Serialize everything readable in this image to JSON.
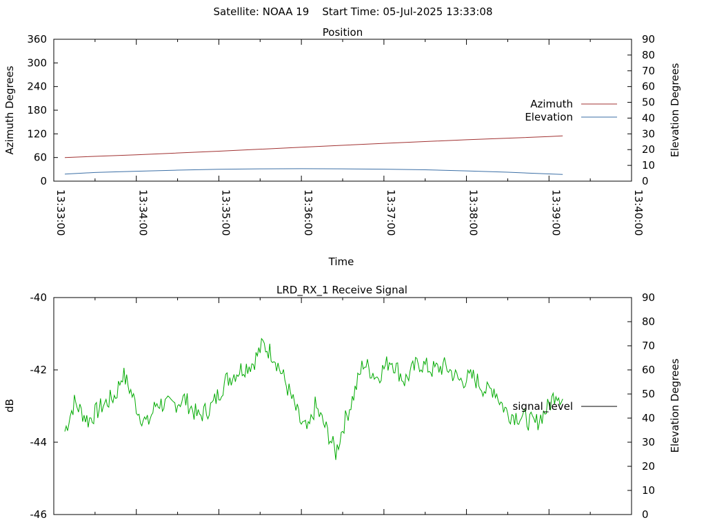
{
  "title": "Satellite: NOAA 19    Start Time: 05-Jul-2025 13:33:08",
  "chart_data": [
    {
      "type": "line",
      "title": "Position",
      "xlabel": "Time",
      "ylabel": "Azimuth Degrees",
      "y2label": "Elevation Degrees",
      "xlim": [
        "13:33:00",
        "13:40:00"
      ],
      "ylim": [
        0,
        360
      ],
      "y2lim": [
        0,
        90
      ],
      "x_ticks": [
        "13:33:00",
        "13:34:00",
        "13:35:00",
        "13:36:00",
        "13:37:00",
        "13:38:00",
        "13:39:00",
        "13:40:00"
      ],
      "y_ticks": [
        0,
        60,
        120,
        180,
        240,
        300,
        360
      ],
      "y2_ticks": [
        0,
        10,
        20,
        30,
        40,
        50,
        60,
        70,
        80,
        90
      ],
      "legend_position": "right",
      "series": [
        {
          "name": "Azimuth",
          "axis": "y",
          "color": "#a03030",
          "x": [
            "13:33:08",
            "13:34:00",
            "13:35:00",
            "13:36:00",
            "13:37:00",
            "13:38:00",
            "13:39:00",
            "13:39:10"
          ],
          "values": [
            60,
            67,
            76,
            86,
            96,
            105,
            113,
            115
          ]
        },
        {
          "name": "Elevation",
          "axis": "y2",
          "color": "#3a6ea5",
          "x": [
            "13:33:08",
            "13:33:30",
            "13:34:00",
            "13:34:30",
            "13:35:00",
            "13:35:30",
            "13:36:00",
            "13:36:30",
            "13:37:00",
            "13:37:30",
            "13:38:00",
            "13:38:30",
            "13:39:00",
            "13:39:10"
          ],
          "values": [
            4.5,
            5.5,
            6.3,
            7.0,
            7.5,
            7.8,
            7.9,
            7.8,
            7.6,
            7.2,
            6.5,
            5.7,
            4.6,
            4.3
          ]
        }
      ]
    },
    {
      "type": "line",
      "title": "LRD_RX_1 Receive Signal",
      "ylabel": "dB",
      "y2label": "Elevation Degrees",
      "xlim": [
        "13:33:00",
        "13:40:00"
      ],
      "ylim": [
        -46,
        -40
      ],
      "y2lim": [
        0,
        90
      ],
      "y_ticks": [
        -46,
        -44,
        -42,
        -40
      ],
      "y2_ticks": [
        0,
        10,
        20,
        30,
        40,
        50,
        60,
        70,
        80,
        90
      ],
      "legend_position": "right",
      "series": [
        {
          "name": "signal_level",
          "axis": "y",
          "color": "#00aa00",
          "x": [
            "13:33:08",
            "13:33:15",
            "13:33:25",
            "13:33:35",
            "13:33:45",
            "13:33:50",
            "13:33:55",
            "13:34:02",
            "13:34:08",
            "13:34:15",
            "13:34:25",
            "13:34:35",
            "13:34:45",
            "13:34:55",
            "13:35:05",
            "13:35:15",
            "13:35:25",
            "13:35:32",
            "13:35:40",
            "13:35:48",
            "13:35:55",
            "13:36:00",
            "13:36:05",
            "13:36:10",
            "13:36:15",
            "13:36:20",
            "13:36:25",
            "13:36:30",
            "13:36:38",
            "13:36:45",
            "13:36:55",
            "13:37:05",
            "13:37:15",
            "13:37:25",
            "13:37:35",
            "13:37:45",
            "13:37:55",
            "13:38:05",
            "13:38:15",
            "13:38:20",
            "13:38:25",
            "13:38:30",
            "13:38:40",
            "13:38:50",
            "13:39:00",
            "13:39:05",
            "13:39:10"
          ],
          "values": [
            -43.7,
            -42.9,
            -43.4,
            -43.0,
            -42.7,
            -42.1,
            -42.5,
            -43.2,
            -43.5,
            -42.9,
            -43.0,
            -42.8,
            -43.3,
            -43.0,
            -42.3,
            -42.0,
            -41.8,
            -41.3,
            -41.6,
            -42.3,
            -43.0,
            -43.5,
            -43.7,
            -43.0,
            -43.4,
            -43.8,
            -44.3,
            -43.6,
            -42.7,
            -41.8,
            -42.2,
            -41.7,
            -42.3,
            -41.8,
            -42.0,
            -41.9,
            -42.3,
            -42.2,
            -42.6,
            -42.5,
            -42.9,
            -43.2,
            -43.3,
            -43.5,
            -43.0,
            -42.6,
            -42.8
          ]
        }
      ]
    }
  ]
}
